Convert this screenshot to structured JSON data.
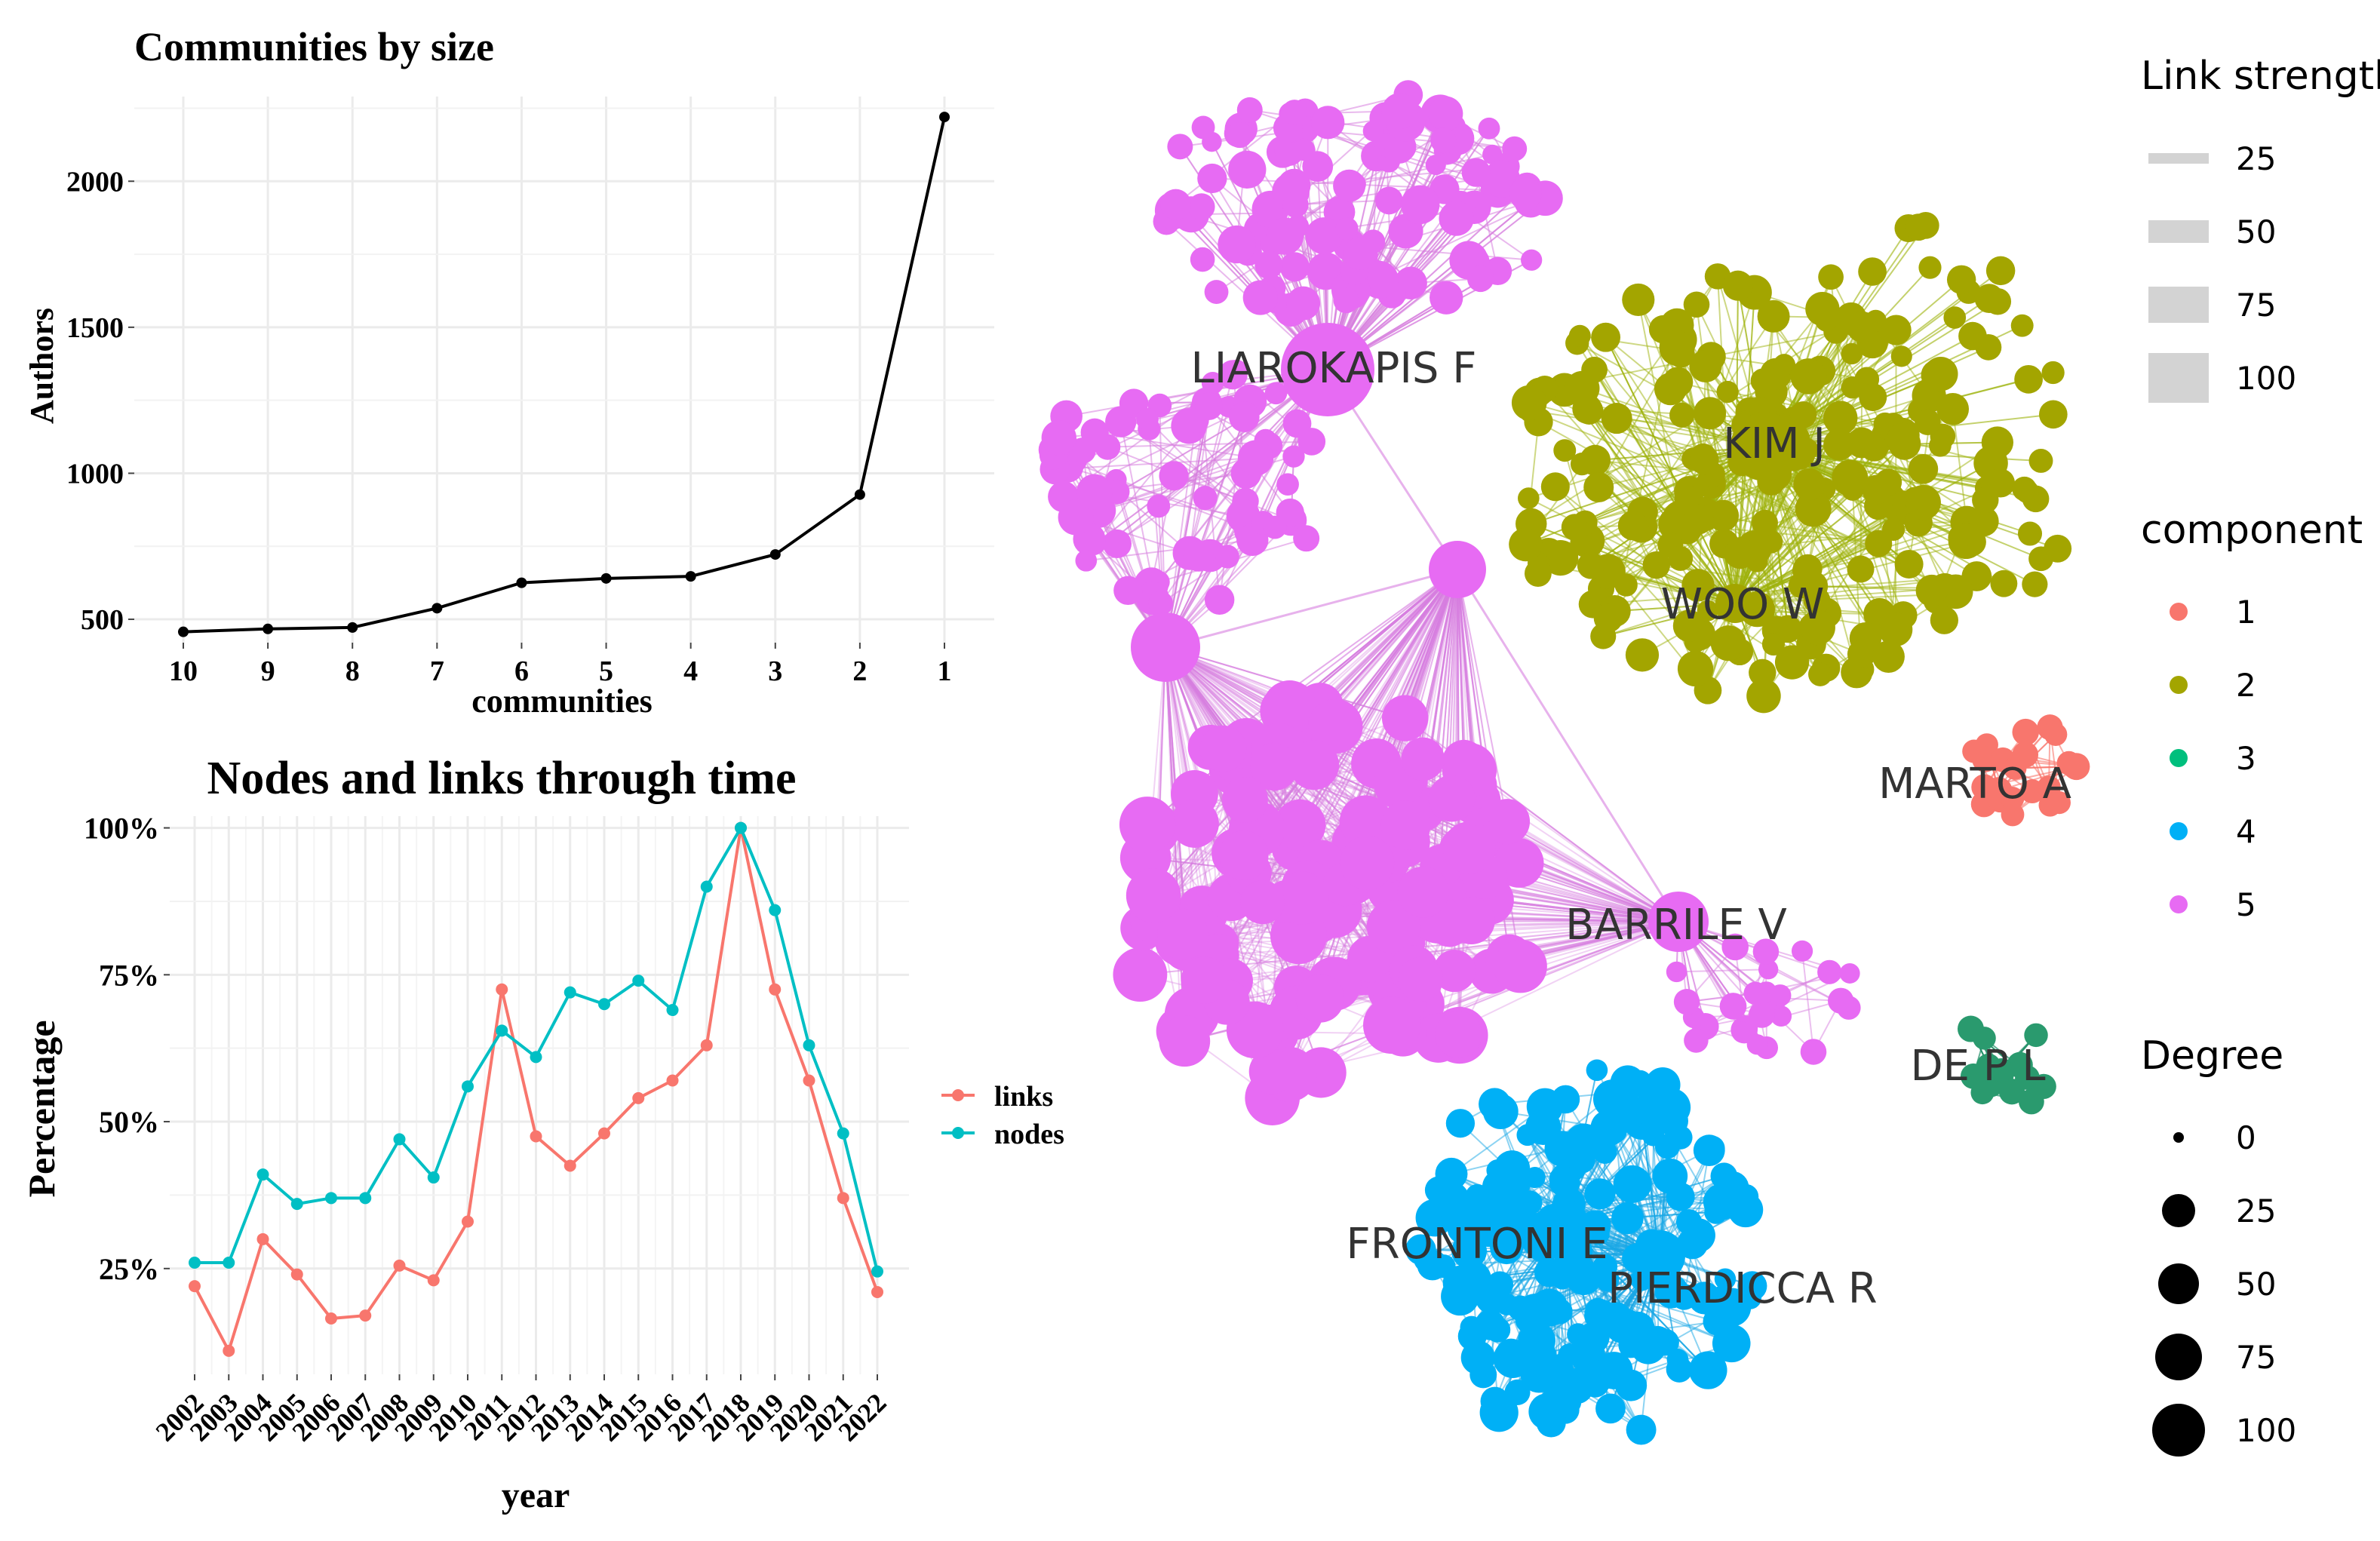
{
  "chart_data": [
    {
      "type": "line",
      "title": "Communities by size",
      "xlabel": "communities",
      "ylabel": "Authors",
      "categories": [
        "10",
        "9",
        "8",
        "7",
        "6",
        "5",
        "4",
        "3",
        "2",
        "1"
      ],
      "values": [
        457,
        467,
        472,
        538,
        625,
        640,
        647,
        722,
        927,
        2220
      ],
      "ylim": [
        420,
        2290
      ],
      "yticks": [
        500,
        1000,
        1500,
        2000
      ],
      "ytick_labels": [
        "500",
        "1000",
        "1500",
        "2000"
      ],
      "grid": true
    },
    {
      "type": "line",
      "title": "Nodes and links through time",
      "xlabel": "year",
      "ylabel": "Percentage",
      "categories": [
        "2002",
        "2003",
        "2004",
        "2005",
        "2006",
        "2007",
        "2008",
        "2009",
        "2010",
        "2011",
        "2012",
        "2013",
        "2014",
        "2015",
        "2016",
        "2017",
        "2018",
        "2019",
        "2020",
        "2021",
        "2022"
      ],
      "series": [
        {
          "name": "links",
          "color": "#F8766D",
          "values": [
            22,
            11,
            30,
            24,
            16.5,
            17,
            25.5,
            23,
            33,
            72.5,
            47.5,
            42.5,
            48,
            54,
            57,
            63,
            100,
            72.5,
            57,
            37,
            21
          ]
        },
        {
          "name": "nodes",
          "color": "#00BFC4",
          "values": [
            26,
            26,
            41,
            36,
            37,
            37,
            47,
            40.5,
            56,
            65.5,
            61,
            72,
            70,
            74,
            69,
            90,
            100,
            86,
            63,
            48,
            24.5
          ]
        }
      ],
      "ylim": [
        7,
        102
      ],
      "yticks": [
        25,
        50,
        75,
        100
      ],
      "ytick_labels": [
        "25%",
        "50%",
        "75%",
        "100%"
      ],
      "legend": "right",
      "grid": true
    },
    {
      "type": "network",
      "node_labels": [
        {
          "text": "LIAROKAPIS F",
          "component": 5
        },
        {
          "text": "KIM J",
          "component": 2
        },
        {
          "text": "WOO W",
          "component": 2
        },
        {
          "text": "MARTO A",
          "component": 1
        },
        {
          "text": "BARRILE V",
          "component": 5
        },
        {
          "text": "DE P L",
          "component": 3
        },
        {
          "text": "FRONTONI E",
          "component": 4
        },
        {
          "text": "PIERDICCA R",
          "component": 4
        }
      ],
      "legend": {
        "link_strength": {
          "title": "Link strength",
          "values": [
            "25",
            "50",
            "75",
            "100"
          ]
        },
        "component": {
          "title": "component",
          "values": [
            "1",
            "2",
            "3",
            "4",
            "5"
          ],
          "colors": [
            "#F8766D",
            "#A3A500",
            "#00BF7D",
            "#00B0F6",
            "#E76BF3"
          ]
        },
        "degree": {
          "title": "Degree",
          "values": [
            "0",
            "25",
            "50",
            "75",
            "100"
          ]
        }
      }
    }
  ]
}
